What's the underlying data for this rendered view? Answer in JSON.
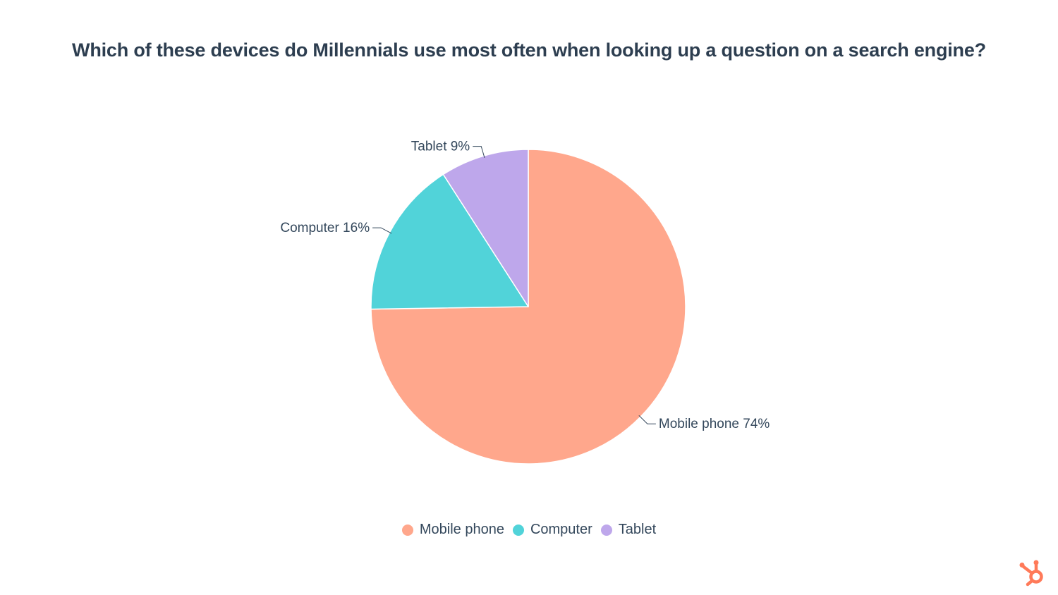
{
  "chart_data": {
    "type": "pie",
    "title": "Which of these devices do Millennials use most often when looking up a question on a search engine?",
    "categories": [
      "Mobile phone",
      "Computer",
      "Tablet"
    ],
    "values": [
      74,
      16,
      9
    ],
    "value_suffix": "%",
    "data_labels": [
      "Mobile phone 74%",
      "Computer 16%",
      "Tablet 9%"
    ],
    "colors": [
      "#ffa78c",
      "#51d3d9",
      "#bea7eb"
    ],
    "legend": {
      "position": "bottom",
      "entries": [
        "Mobile phone",
        "Computer",
        "Tablet"
      ]
    }
  },
  "brand": {
    "logo_icon": "hubspot-sprocket-icon",
    "logo_color": "#ff7a59"
  }
}
